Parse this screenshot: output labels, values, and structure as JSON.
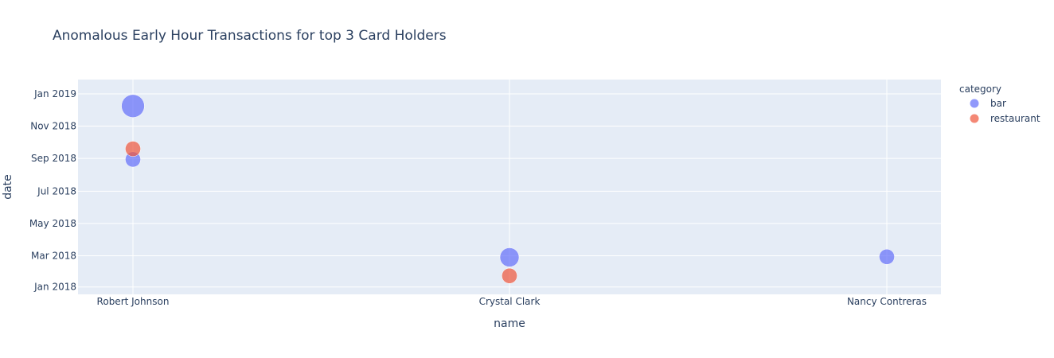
{
  "chart_data": {
    "type": "scatter",
    "title": "Anomalous Early Hour Transactions for top 3 Card Holders",
    "xlabel": "name",
    "ylabel": "date",
    "categories": [
      "Robert Johnson",
      "Crystal Clark",
      "Nancy Contreras"
    ],
    "y_ticks": [
      "Jan 2018",
      "Mar 2018",
      "May 2018",
      "Jul 2018",
      "Sep 2018",
      "Nov 2018",
      "Jan 2019"
    ],
    "y_tick_dates": [
      "2018-01-01",
      "2018-03-01",
      "2018-05-01",
      "2018-07-01",
      "2018-09-01",
      "2018-11-01",
      "2019-01-01"
    ],
    "y_range": [
      "2017-12-18",
      "2019-01-28"
    ],
    "grid": true,
    "legend_title": "category",
    "legend_position": "right",
    "series": [
      {
        "name": "bar",
        "color": "#636efa",
        "points": [
          {
            "x": "Robert Johnson",
            "date": "2018-12-09",
            "size": 3
          },
          {
            "x": "Robert Johnson",
            "date": "2018-08-30",
            "size": 2
          },
          {
            "x": "Crystal Clark",
            "date": "2018-02-26",
            "size": 2.5
          },
          {
            "x": "Nancy Contreras",
            "date": "2018-02-27",
            "size": 2
          }
        ]
      },
      {
        "name": "restaurant",
        "color": "#EF553B",
        "points": [
          {
            "x": "Robert Johnson",
            "date": "2018-09-19",
            "size": 2
          },
          {
            "x": "Crystal Clark",
            "date": "2018-01-22",
            "size": 2
          }
        ]
      }
    ]
  }
}
